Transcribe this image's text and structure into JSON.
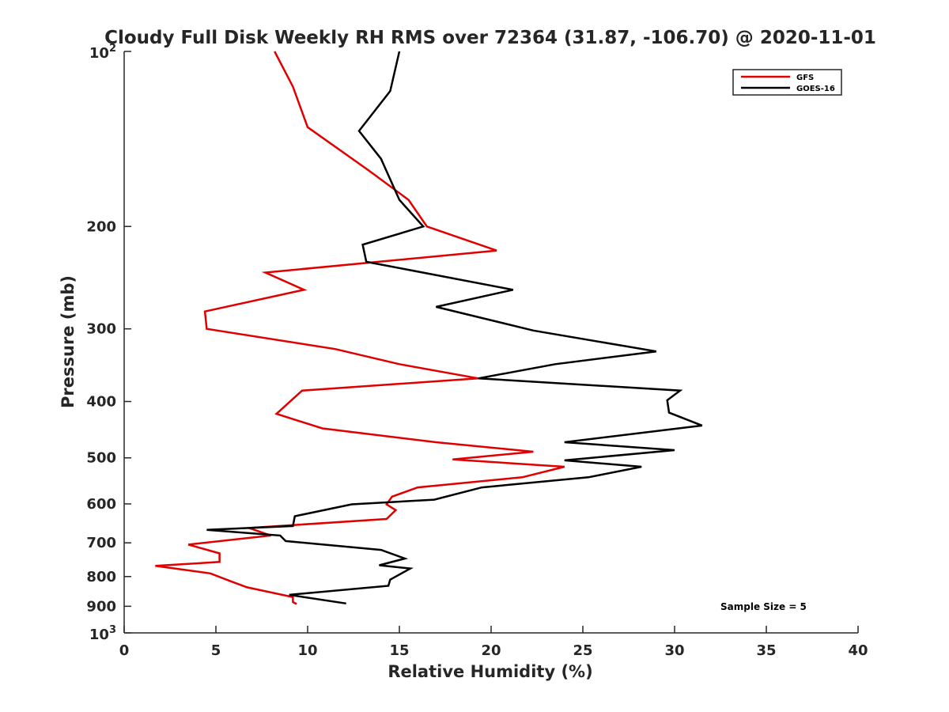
{
  "chart_data": {
    "type": "line",
    "title": "Cloudy Full Disk Weekly RH RMS over 72364 (31.87, -106.70) @ 2020-11-01",
    "xlabel": "Relative Humidity (%)",
    "ylabel": "Pressure (mb)",
    "xlim": [
      0,
      40
    ],
    "ylim": [
      100,
      1000
    ],
    "yscale": "log",
    "y_reversed": true,
    "grid": false,
    "legend_position": "top-right",
    "x_ticks": [
      0,
      5,
      10,
      15,
      20,
      25,
      30,
      35,
      40
    ],
    "x_tick_labels": [
      "0",
      "5",
      "10",
      "15",
      "20",
      "25",
      "30",
      "35",
      "40"
    ],
    "y_ticks": [
      200,
      300,
      400,
      500,
      600,
      700,
      800,
      900
    ],
    "y_tick_labels": [
      "200",
      "300",
      "400",
      "500",
      "600",
      "700",
      "800",
      "900"
    ],
    "y_decade_ticks": [
      {
        "value": 100,
        "base": "10",
        "exp": "2"
      },
      {
        "value": 1000,
        "base": "10",
        "exp": "3"
      }
    ],
    "annotation": "Sample Size = 5",
    "series": [
      {
        "name": "GFS",
        "color": "#e00000",
        "points": [
          [
            8.2,
            100
          ],
          [
            9.2,
            115
          ],
          [
            10.0,
            135
          ],
          [
            13.3,
            160
          ],
          [
            15.5,
            180
          ],
          [
            16.5,
            200
          ],
          [
            20.3,
            220
          ],
          [
            7.7,
            240
          ],
          [
            9.8,
            257
          ],
          [
            4.4,
            280
          ],
          [
            4.5,
            300
          ],
          [
            11.5,
            325
          ],
          [
            15.0,
            345
          ],
          [
            19.3,
            365
          ],
          [
            9.7,
            383
          ],
          [
            8.3,
            420
          ],
          [
            10.8,
            445
          ],
          [
            17.0,
            470
          ],
          [
            22.3,
            488
          ],
          [
            17.9,
            503
          ],
          [
            24.0,
            518
          ],
          [
            21.7,
            540
          ],
          [
            16.0,
            562
          ],
          [
            14.6,
            583
          ],
          [
            14.3,
            601
          ],
          [
            14.8,
            615
          ],
          [
            14.3,
            637
          ],
          [
            6.8,
            660
          ],
          [
            8.0,
            680
          ],
          [
            3.5,
            705
          ],
          [
            5.2,
            730
          ],
          [
            5.2,
            755
          ],
          [
            1.7,
            767
          ],
          [
            4.7,
            790
          ],
          [
            5.8,
            815
          ],
          [
            6.7,
            835
          ],
          [
            9.2,
            868
          ],
          [
            9.2,
            885
          ],
          [
            9.4,
            892
          ]
        ]
      },
      {
        "name": "GOES-16",
        "color": "#000000",
        "points": [
          [
            15.0,
            100
          ],
          [
            14.5,
            117
          ],
          [
            12.8,
            137
          ],
          [
            14.0,
            153
          ],
          [
            15.0,
            180
          ],
          [
            16.3,
            200
          ],
          [
            13.0,
            215
          ],
          [
            13.2,
            230
          ],
          [
            21.2,
            257
          ],
          [
            17.0,
            275
          ],
          [
            22.3,
            302
          ],
          [
            29.0,
            328
          ],
          [
            23.5,
            345
          ],
          [
            19.3,
            365
          ],
          [
            30.3,
            383
          ],
          [
            29.6,
            398
          ],
          [
            29.7,
            418
          ],
          [
            31.5,
            440
          ],
          [
            24.0,
            470
          ],
          [
            30.0,
            485
          ],
          [
            24.0,
            505
          ],
          [
            28.2,
            518
          ],
          [
            25.3,
            540
          ],
          [
            19.5,
            562
          ],
          [
            16.9,
            590
          ],
          [
            12.4,
            601
          ],
          [
            9.3,
            630
          ],
          [
            9.2,
            655
          ],
          [
            4.5,
            665
          ],
          [
            8.5,
            680
          ],
          [
            8.8,
            695
          ],
          [
            14.0,
            720
          ],
          [
            15.3,
            745
          ],
          [
            13.9,
            765
          ],
          [
            15.6,
            775
          ],
          [
            14.5,
            810
          ],
          [
            14.4,
            830
          ],
          [
            9.0,
            860
          ],
          [
            12.1,
            890
          ]
        ]
      }
    ]
  }
}
